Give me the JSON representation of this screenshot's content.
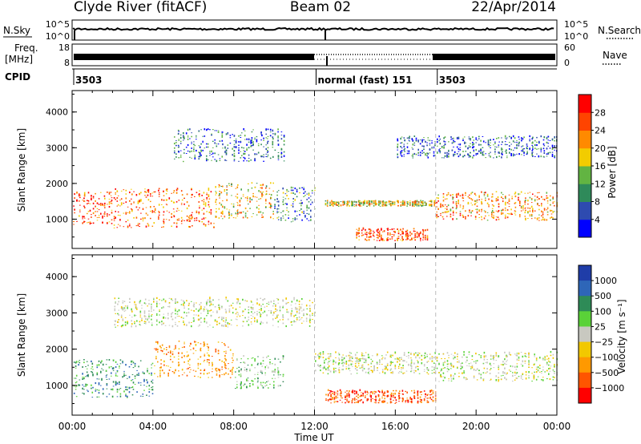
{
  "header": {
    "title": "Clyde River (fitACF)",
    "beam": "Beam 02",
    "date": "22/Apr/2014"
  },
  "noise_panel": {
    "left_label": "N.Sky",
    "left_ticks": [
      "10^5",
      "10^0"
    ],
    "right_label": "N.Search",
    "right_ticks": [
      "10^5",
      "10^0"
    ]
  },
  "freq_panel": {
    "left_label_1": "Freq.",
    "left_label_2": "[MHz]",
    "left_ticks": [
      "18",
      "8"
    ],
    "right_label": "Nave",
    "right_ticks": [
      "60",
      "0"
    ]
  },
  "cpid_panel": {
    "label": "CPID",
    "segments": [
      {
        "start_hour": 0,
        "text": "3503"
      },
      {
        "start_hour": 12,
        "text": "normal (fast) 151"
      },
      {
        "start_hour": 18,
        "text": "3503"
      }
    ]
  },
  "colors": {
    "power": [
      "#0000ff",
      "#2e4bb0",
      "#2f8a5a",
      "#62b442",
      "#f2cc00",
      "#ff8a00",
      "#ff4400",
      "#ff0000"
    ],
    "velocity": [
      "#ff0000",
      "#ff5500",
      "#ff9900",
      "#f2c800",
      "#c8c8c0",
      "#5ad238",
      "#2e8b57",
      "#2e66b8",
      "#1f3da8"
    ]
  },
  "chart_data": [
    {
      "type": "heatmap",
      "quantity": "Power",
      "xlabel": "",
      "ylabel": "Slant Range [km]",
      "xlim": [
        0,
        24
      ],
      "ylim": [
        180,
        4600
      ],
      "yticks": [
        1000,
        2000,
        3000,
        4000
      ],
      "colorbar": {
        "label": "Power [dB]",
        "ticks": [
          "4",
          "8",
          "12",
          "16",
          "20",
          "24",
          "28"
        ],
        "range": [
          0,
          32
        ]
      },
      "echo_bands": [
        {
          "t0": 0.0,
          "t1": 2.0,
          "r_lo": 850,
          "r_hi": 1750,
          "level": 26
        },
        {
          "t0": 2.0,
          "t1": 7.0,
          "r_lo": 750,
          "r_hi": 1850,
          "level": 24
        },
        {
          "t0": 7.0,
          "t1": 10.0,
          "r_lo": 1000,
          "r_hi": 2000,
          "level": 18
        },
        {
          "t0": 10.0,
          "t1": 12.0,
          "r_lo": 900,
          "r_hi": 1900,
          "level": 10
        },
        {
          "t0": 12.5,
          "t1": 18.0,
          "r_lo": 1350,
          "r_hi": 1500,
          "level": 18
        },
        {
          "t0": 14.0,
          "t1": 17.6,
          "r_lo": 380,
          "r_hi": 720,
          "level": 26
        },
        {
          "t0": 18.0,
          "t1": 24.0,
          "r_lo": 950,
          "r_hi": 1750,
          "level": 22
        },
        {
          "t0": 5.0,
          "t1": 10.5,
          "r_lo": 2600,
          "r_hi": 3500,
          "level": 8
        },
        {
          "t0": 16.0,
          "t1": 24.0,
          "r_lo": 2700,
          "r_hi": 3300,
          "level": 7
        }
      ]
    },
    {
      "type": "heatmap",
      "quantity": "Velocity",
      "xlabel": "Time UT",
      "ylabel": "Slant Range [km]",
      "xlim": [
        0,
        24
      ],
      "ylim": [
        180,
        4600
      ],
      "yticks": [
        1000,
        2000,
        3000,
        4000
      ],
      "xticks": [
        "00:00",
        "04:00",
        "08:00",
        "12:00",
        "16:00",
        "20:00",
        "00:00"
      ],
      "colorbar": {
        "label": "Velocity [m s⁻¹]",
        "ticks": [
          "1000",
          "500",
          "100",
          "25",
          "−25",
          "−100",
          "−500",
          "−1000"
        ]
      },
      "echo_bands": [
        {
          "t0": 0.0,
          "t1": 4.0,
          "r_lo": 650,
          "r_hi": 1700,
          "class": 6
        },
        {
          "t0": 4.0,
          "t1": 8.0,
          "r_lo": 1200,
          "r_hi": 2200,
          "class": 2
        },
        {
          "t0": 8.0,
          "t1": 10.5,
          "r_lo": 900,
          "r_hi": 1800,
          "class": 5
        },
        {
          "t0": 12.0,
          "t1": 18.0,
          "r_lo": 1300,
          "r_hi": 1900,
          "class": 4
        },
        {
          "t0": 12.5,
          "t1": 18.0,
          "r_lo": 500,
          "r_hi": 850,
          "class": 1
        },
        {
          "t0": 18.0,
          "t1": 24.0,
          "r_lo": 1100,
          "r_hi": 1900,
          "class": 4
        },
        {
          "t0": 2.0,
          "t1": 12.0,
          "r_lo": 2600,
          "r_hi": 3400,
          "class": 4
        }
      ]
    }
  ]
}
